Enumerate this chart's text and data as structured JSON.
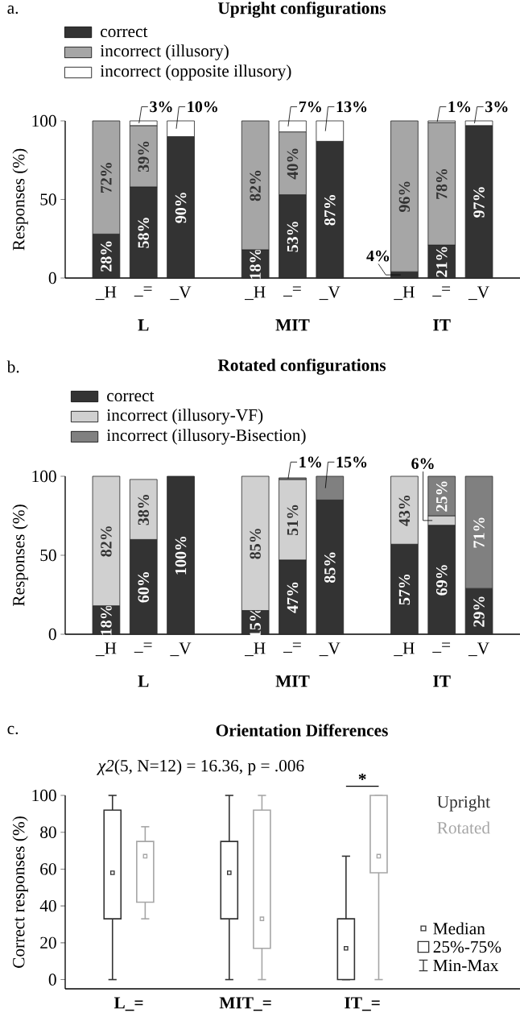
{
  "chart_data": [
    {
      "type": "bar",
      "stacked": true,
      "title": "Upright configurations",
      "ylabel": "Responses (%)",
      "categories": [
        "_H",
        "_=",
        "_V",
        "_H",
        "_=",
        "_V",
        "_H",
        "_=",
        "_V"
      ],
      "ylim": [
        0,
        100
      ],
      "yticks": [
        0,
        50,
        100
      ],
      "legend": "top left",
      "annotations": [
        "a.",
        "L",
        "MIT",
        "IT"
      ],
      "series": [
        {
          "name": "correct",
          "color": "#333333",
          "values": [
            28,
            58,
            90,
            18,
            53,
            87,
            4,
            21,
            97
          ],
          "value_labels": [
            "28%",
            "58%",
            "90%",
            "18%",
            "53%",
            "87%",
            "4%",
            "21%",
            "97%"
          ]
        },
        {
          "name": "incorrect (illusory)",
          "color": "#a6a6a6",
          "values": [
            72,
            39,
            0,
            82,
            40,
            0,
            96,
            78,
            0
          ],
          "value_labels": [
            "72%",
            "39%",
            null,
            "82%",
            "40%",
            null,
            "96%",
            "78%",
            null
          ]
        },
        {
          "name": "incorrect (opposite illusory)",
          "color": "#ffffff",
          "values": [
            0,
            3,
            10,
            0,
            7,
            13,
            0,
            1,
            3
          ],
          "value_labels": [
            null,
            "3%",
            "10%",
            null,
            "7%",
            "13%",
            null,
            "1%",
            "3%"
          ]
        }
      ]
    },
    {
      "type": "bar",
      "stacked": true,
      "title": "Rotated configurations",
      "ylabel": "Responses (%)",
      "categories": [
        "_H",
        "_=",
        "_V",
        "_H",
        "_=",
        "_V",
        "_H",
        "_=",
        "_V"
      ],
      "ylim": [
        0,
        100
      ],
      "yticks": [
        0,
        50,
        100
      ],
      "legend": "top left",
      "annotations": [
        "b.",
        "L",
        "MIT",
        "IT"
      ],
      "series": [
        {
          "name": "correct",
          "color": "#333333",
          "values": [
            18,
            60,
            100,
            15,
            47,
            85,
            57,
            69,
            29
          ],
          "value_labels": [
            "18%",
            "60%",
            "100%",
            "15%",
            "47%",
            "85%",
            "57%",
            "69%",
            "29%"
          ]
        },
        {
          "name": "incorrect (illusory-VF)",
          "color": "#d0d0d0",
          "values": [
            82,
            38,
            0,
            85,
            51,
            0,
            43,
            6,
            0
          ],
          "value_labels": [
            "82%",
            "38%",
            null,
            "85%",
            "51%",
            null,
            "43%",
            "6%",
            null
          ]
        },
        {
          "name": "incorrect (illusory-Bisection)",
          "color": "#808080",
          "values": [
            0,
            0,
            0,
            0,
            1,
            15,
            0,
            25,
            71
          ],
          "value_labels": [
            null,
            null,
            null,
            null,
            "1%",
            "15%",
            null,
            "25%",
            "71%"
          ]
        }
      ]
    },
    {
      "type": "box",
      "title": "Orientation Differences",
      "ylabel": "Correct responses (%)",
      "categories": [
        "L_=",
        "MIT_=",
        "IT_="
      ],
      "ylim": [
        -5,
        100
      ],
      "yticks": [
        0,
        20,
        40,
        60,
        80,
        100
      ],
      "legend": "right",
      "annotations": [
        "c.",
        "*χ2*(5, N=12) = 16.36, p = .006",
        "*",
        "Median",
        "25%-75%",
        "Min-Max"
      ],
      "series": [
        {
          "name": "Upright",
          "color": "#333333",
          "boxes": [
            {
              "low": 0,
              "q1": 33,
              "median": 58,
              "q3": 92,
              "high": 100
            },
            {
              "low": 0,
              "q1": 33,
              "median": 58,
              "q3": 75,
              "high": 100
            },
            {
              "low": 0,
              "q1": 0,
              "median": 17,
              "q3": 33,
              "high": 67
            }
          ]
        },
        {
          "name": "Rotated",
          "color": "#a6a6a6",
          "boxes": [
            {
              "low": 33,
              "q1": 42,
              "median": 67,
              "q3": 75,
              "high": 83
            },
            {
              "low": 0,
              "q1": 17,
              "median": 33,
              "q3": 92,
              "high": 100
            },
            {
              "low": 0,
              "q1": 58,
              "median": 67,
              "q3": 100,
              "high": 100
            }
          ]
        }
      ]
    }
  ]
}
